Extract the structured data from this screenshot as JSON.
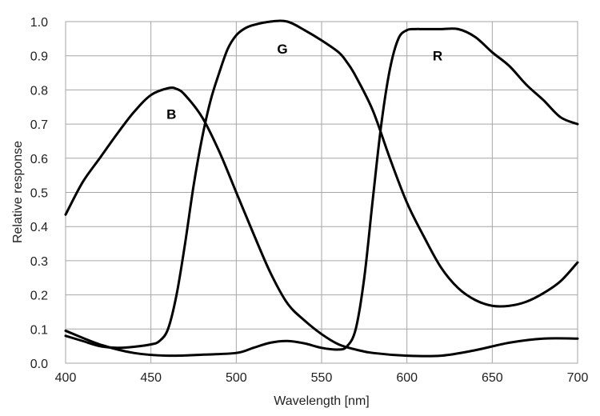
{
  "chart_data": {
    "type": "line",
    "title": "",
    "xlabel": "Wavelength [nm]",
    "ylabel": "Relative response",
    "xlim": [
      400,
      700
    ],
    "ylim": [
      0,
      1.0
    ],
    "x_ticks": [
      "400",
      "450",
      "500",
      "550",
      "600",
      "650",
      "700"
    ],
    "y_ticks": [
      "0.0",
      "0.1",
      "0.2",
      "0.3",
      "0.4",
      "0.5",
      "0.6",
      "0.7",
      "0.8",
      "0.9",
      "1.0"
    ],
    "grid": true,
    "legend": "none",
    "series": [
      {
        "name": "B",
        "label_at": [
          462,
          0.73
        ],
        "x": [
          400,
          410,
          420,
          430,
          440,
          450,
          460,
          465,
          470,
          480,
          490,
          500,
          510,
          520,
          530,
          540,
          550,
          560,
          570,
          580,
          600,
          620,
          640,
          660,
          680,
          700
        ],
        "y": [
          0.435,
          0.53,
          0.6,
          0.67,
          0.735,
          0.785,
          0.805,
          0.803,
          0.785,
          0.72,
          0.62,
          0.5,
          0.38,
          0.265,
          0.175,
          0.125,
          0.085,
          0.055,
          0.04,
          0.03,
          0.022,
          0.022,
          0.038,
          0.06,
          0.072,
          0.072
        ]
      },
      {
        "name": "G",
        "label_at": [
          527,
          0.92
        ],
        "x": [
          400,
          410,
          420,
          430,
          440,
          450,
          455,
          460,
          465,
          470,
          475,
          480,
          485,
          490,
          495,
          500,
          505,
          510,
          520,
          530,
          540,
          550,
          560,
          565,
          570,
          580,
          590,
          600,
          610,
          620,
          630,
          640,
          650,
          660,
          670,
          680,
          690,
          700
        ],
        "y": [
          0.08,
          0.065,
          0.05,
          0.045,
          0.048,
          0.055,
          0.065,
          0.1,
          0.2,
          0.35,
          0.52,
          0.66,
          0.77,
          0.85,
          0.92,
          0.96,
          0.98,
          0.99,
          1.0,
          1.0,
          0.975,
          0.945,
          0.91,
          0.88,
          0.84,
          0.74,
          0.6,
          0.47,
          0.37,
          0.28,
          0.22,
          0.185,
          0.168,
          0.168,
          0.18,
          0.205,
          0.24,
          0.295
        ]
      },
      {
        "name": "R",
        "label_at": [
          618,
          0.9
        ],
        "x": [
          400,
          420,
          440,
          460,
          480,
          500,
          510,
          520,
          530,
          540,
          550,
          560,
          565,
          570,
          575,
          580,
          585,
          590,
          595,
          600,
          605,
          610,
          620,
          630,
          640,
          650,
          660,
          670,
          680,
          690,
          700
        ],
        "y": [
          0.095,
          0.055,
          0.03,
          0.022,
          0.025,
          0.03,
          0.045,
          0.06,
          0.065,
          0.058,
          0.045,
          0.04,
          0.05,
          0.1,
          0.25,
          0.48,
          0.7,
          0.86,
          0.95,
          0.975,
          0.978,
          0.978,
          0.978,
          0.978,
          0.955,
          0.91,
          0.87,
          0.815,
          0.77,
          0.72,
          0.7
        ]
      }
    ]
  }
}
